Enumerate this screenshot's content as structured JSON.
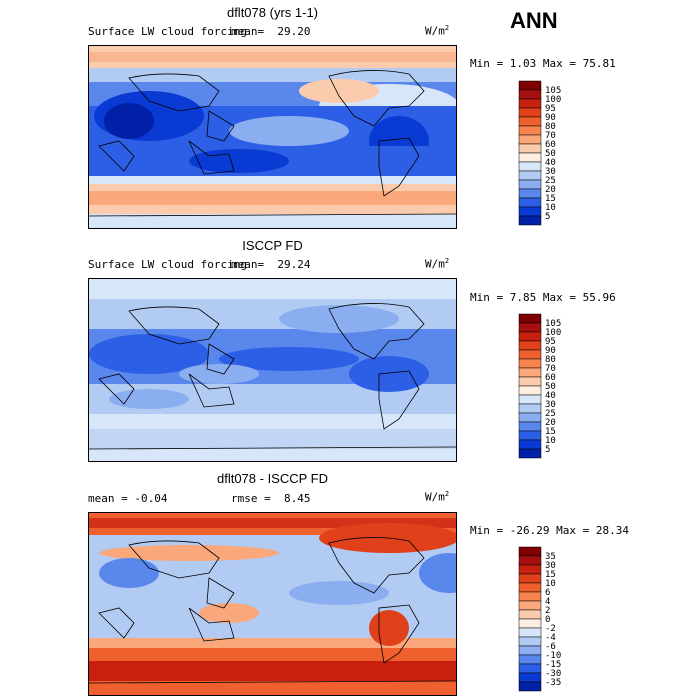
{
  "season": "ANN",
  "panels": [
    {
      "title": "dflt078 (yrs 1-1)",
      "left_label": "Surface LW cloud forcing",
      "mean_label": "mean=",
      "mean_value": "29.20",
      "units": "W/m",
      "units_sup": "2",
      "minmax": "Min =   1.03 Max =  75.81",
      "scale": "abs"
    },
    {
      "title": "ISCCP FD",
      "left_label": "Surface LW cloud forcing",
      "mean_label": "mean=",
      "mean_value": "29.24",
      "units": "W/m",
      "units_sup": "2",
      "minmax": "Min =   7.85 Max =  55.96",
      "scale": "abs"
    },
    {
      "title": "dflt078 - ISCCP FD",
      "left_label": "mean =  -0.04",
      "mean_label": "rmse =",
      "mean_value": "8.45",
      "units": "W/m",
      "units_sup": "2",
      "minmax": "Min = -26.29 Max =  28.34",
      "scale": "diff"
    }
  ],
  "colorbars": {
    "abs": {
      "labels": [
        "105",
        "100",
        "95",
        "90",
        "80",
        "70",
        "60",
        "50",
        "40",
        "30",
        "25",
        "20",
        "15",
        "10",
        "5"
      ],
      "colors": [
        "#7f0000",
        "#a50f0f",
        "#c8200f",
        "#e0401a",
        "#f0602e",
        "#f7844d",
        "#f9a77b",
        "#fbcbad",
        "#fdeee2",
        "#d7e6f8",
        "#b2cbf3",
        "#8aaef0",
        "#5a87ec",
        "#2c5fe6",
        "#0a3ad4",
        "#0020a8"
      ]
    },
    "diff": {
      "labels": [
        "35",
        "30",
        "15",
        "10",
        "6",
        "4",
        "2",
        "0",
        "-2",
        "-4",
        "-6",
        "-10",
        "-15",
        "-30",
        "-35"
      ],
      "colors": [
        "#7f0000",
        "#a50f0f",
        "#c8200f",
        "#e0401a",
        "#f0602e",
        "#f7844d",
        "#f9a77b",
        "#fbcbad",
        "#fdeee2",
        "#d7e6f8",
        "#b2cbf3",
        "#8aaef0",
        "#5a87ec",
        "#2c5fe6",
        "#0a3ad4",
        "#0020a8"
      ]
    }
  }
}
